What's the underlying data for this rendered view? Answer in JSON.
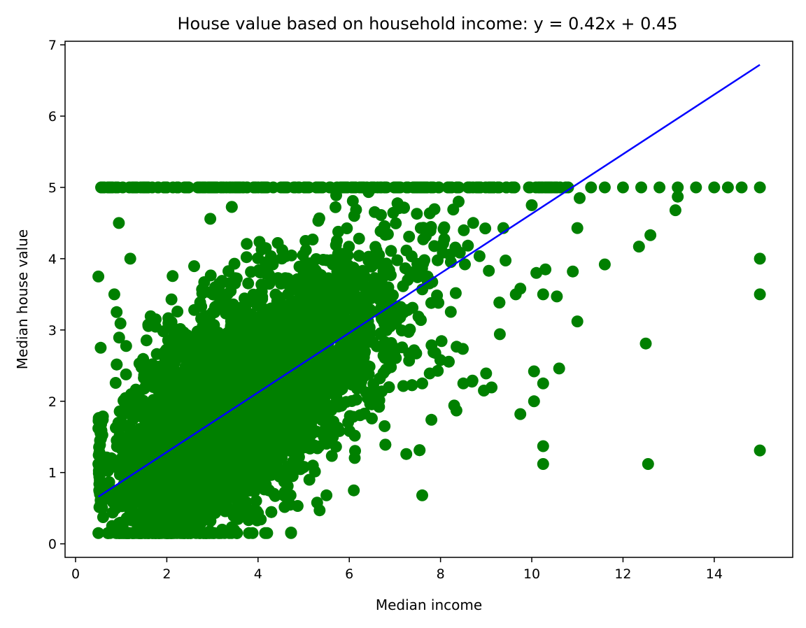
{
  "chart_data": {
    "type": "scatter",
    "title": "House value based on household income: y = 0.42x + 0.45",
    "xlabel": "Median income",
    "ylabel": "Median house value",
    "xlim": [
      -0.23,
      15.72
    ],
    "ylim": [
      -0.19,
      7.05
    ],
    "xticks": [
      0,
      2,
      4,
      6,
      8,
      10,
      12,
      14
    ],
    "yticks": [
      0,
      1,
      2,
      3,
      4,
      5,
      6,
      7
    ],
    "grid": false,
    "colors": {
      "points": "#008000",
      "line": "#0000ff",
      "axes": "#000000"
    },
    "regression": {
      "slope": 0.42,
      "intercept": 0.45,
      "x": [
        0.5,
        15.0
      ],
      "y": [
        0.66,
        6.72
      ]
    },
    "cap_value": 5.0,
    "outliers": [
      [
        15.0,
        4.0
      ],
      [
        15.0,
        3.5
      ],
      [
        15.0,
        1.31
      ],
      [
        12.5,
        2.81
      ],
      [
        12.55,
        1.12
      ],
      [
        12.6,
        4.33
      ],
      [
        12.35,
        4.17
      ],
      [
        11.6,
        3.92
      ],
      [
        11.0,
        4.43
      ],
      [
        11.0,
        3.12
      ],
      [
        10.9,
        3.82
      ],
      [
        10.6,
        2.46
      ],
      [
        10.55,
        3.47
      ],
      [
        10.25,
        3.5
      ],
      [
        10.25,
        2.25
      ],
      [
        10.25,
        1.37
      ],
      [
        10.25,
        1.12
      ],
      [
        10.05,
        2.0
      ],
      [
        10.05,
        2.42
      ],
      [
        9.75,
        1.82
      ],
      [
        9.3,
        2.94
      ],
      [
        9.0,
        2.39
      ],
      [
        8.95,
        2.15
      ],
      [
        8.7,
        2.29
      ],
      [
        8.5,
        2.25
      ],
      [
        8.3,
        1.94
      ],
      [
        8.35,
        1.87
      ],
      [
        7.8,
        1.74
      ],
      [
        7.6,
        0.68
      ],
      [
        7.25,
        1.26
      ],
      [
        7.6,
        2.25
      ],
      [
        6.1,
        0.75
      ],
      [
        5.35,
        0.47
      ],
      [
        5.5,
        0.68
      ],
      [
        4.2,
        0.15
      ],
      [
        13.15,
        4.68
      ],
      [
        13.2,
        4.87
      ],
      [
        11.05,
        4.85
      ],
      [
        10.0,
        4.75
      ],
      [
        9.65,
        3.5
      ],
      [
        9.75,
        3.58
      ],
      [
        10.1,
        3.8
      ],
      [
        10.3,
        3.85
      ],
      [
        0.5,
        0.15
      ],
      [
        0.5,
        3.75
      ],
      [
        0.55,
        2.75
      ],
      [
        0.5,
        1.62
      ],
      [
        0.5,
        1.12
      ],
      [
        0.8,
        0.25
      ],
      [
        1.7,
        0.15
      ],
      [
        2.1,
        0.15
      ],
      [
        0.85,
        3.5
      ],
      [
        1.2,
        4.0
      ],
      [
        0.95,
        4.5
      ],
      [
        0.9,
        3.25
      ]
    ]
  }
}
